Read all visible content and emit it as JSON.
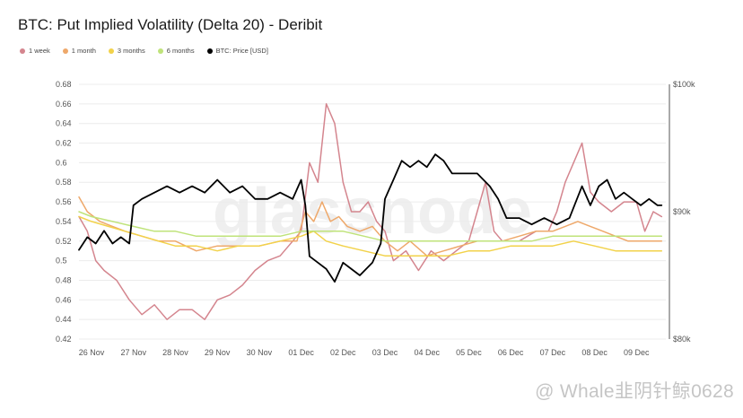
{
  "title": "BTC: Put Implied Volatility (Delta 20) - Deribit",
  "watermark_text": "@ Whale韭阴针鲸0628",
  "brand_watermark": "glassnode",
  "legend": [
    {
      "label": "1 week",
      "color": "#d4858e"
    },
    {
      "label": "1 month",
      "color": "#eea86a"
    },
    {
      "label": "3 months",
      "color": "#f2d24a"
    },
    {
      "label": "6 months",
      "color": "#bfe37a"
    },
    {
      "label": "BTC: Price [USD]",
      "color": "#000000"
    }
  ],
  "chart_data": {
    "type": "line",
    "title": "BTC: Put Implied Volatility (Delta 20) - Deribit",
    "x": [
      "26 Nov",
      "27 Nov",
      "28 Nov",
      "29 Nov",
      "30 Nov",
      "01 Dec",
      "02 Dec",
      "03 Dec",
      "04 Dec",
      "05 Dec",
      "06 Dec",
      "07 Dec",
      "08 Dec",
      "09 Dec"
    ],
    "x_tick_labels": [
      "26 Nov",
      "27 Nov",
      "28 Nov",
      "29 Nov",
      "30 Nov",
      "01 Dec",
      "02 Dec",
      "03 Dec",
      "04 Dec",
      "05 Dec",
      "06 Dec",
      "07 Dec",
      "08 Dec",
      "09 Dec"
    ],
    "y_left": {
      "ylim": [
        0.42,
        0.68
      ],
      "ticks": [
        "0.42",
        "0.44",
        "0.46",
        "0.48",
        "0.5",
        "0.52",
        "0.54",
        "0.56",
        "0.58",
        "0.6",
        "0.62",
        "0.64",
        "0.66",
        "0.68"
      ]
    },
    "y_right": {
      "ylim": [
        80000,
        100000
      ],
      "ticks": [
        {
          "value": 100000,
          "label": "$100k"
        },
        {
          "value": 90000,
          "label": "$90k"
        },
        {
          "value": 80000,
          "label": "$80k"
        }
      ]
    },
    "x_range": [
      -0.3,
      13.7
    ],
    "grid": "horizontal",
    "legend_position": "top-left",
    "series": [
      {
        "name": "1 week",
        "axis": "left",
        "color": "#d4858e",
        "points": [
          [
            -0.3,
            0.545
          ],
          [
            -0.1,
            0.53
          ],
          [
            0.1,
            0.5
          ],
          [
            0.3,
            0.49
          ],
          [
            0.6,
            0.48
          ],
          [
            0.9,
            0.46
          ],
          [
            1.2,
            0.445
          ],
          [
            1.5,
            0.455
          ],
          [
            1.8,
            0.44
          ],
          [
            2.1,
            0.45
          ],
          [
            2.4,
            0.45
          ],
          [
            2.7,
            0.44
          ],
          [
            3.0,
            0.46
          ],
          [
            3.3,
            0.465
          ],
          [
            3.6,
            0.475
          ],
          [
            3.9,
            0.49
          ],
          [
            4.2,
            0.5
          ],
          [
            4.5,
            0.505
          ],
          [
            4.8,
            0.52
          ],
          [
            5.0,
            0.53
          ],
          [
            5.2,
            0.6
          ],
          [
            5.4,
            0.58
          ],
          [
            5.6,
            0.66
          ],
          [
            5.8,
            0.64
          ],
          [
            6.0,
            0.58
          ],
          [
            6.2,
            0.55
          ],
          [
            6.4,
            0.55
          ],
          [
            6.6,
            0.56
          ],
          [
            6.8,
            0.54
          ],
          [
            7.0,
            0.53
          ],
          [
            7.2,
            0.5
          ],
          [
            7.5,
            0.51
          ],
          [
            7.8,
            0.49
          ],
          [
            8.1,
            0.51
          ],
          [
            8.4,
            0.5
          ],
          [
            8.7,
            0.51
          ],
          [
            9.0,
            0.52
          ],
          [
            9.2,
            0.55
          ],
          [
            9.4,
            0.58
          ],
          [
            9.6,
            0.53
          ],
          [
            9.8,
            0.52
          ],
          [
            10.2,
            0.52
          ],
          [
            10.6,
            0.53
          ],
          [
            10.9,
            0.53
          ],
          [
            11.1,
            0.55
          ],
          [
            11.3,
            0.58
          ],
          [
            11.5,
            0.6
          ],
          [
            11.7,
            0.62
          ],
          [
            11.9,
            0.57
          ],
          [
            12.1,
            0.56
          ],
          [
            12.4,
            0.55
          ],
          [
            12.7,
            0.56
          ],
          [
            13.0,
            0.56
          ],
          [
            13.2,
            0.53
          ],
          [
            13.4,
            0.55
          ],
          [
            13.6,
            0.545
          ]
        ]
      },
      {
        "name": "1 month",
        "axis": "left",
        "color": "#eea86a",
        "points": [
          [
            -0.3,
            0.565
          ],
          [
            -0.1,
            0.55
          ],
          [
            0.2,
            0.54
          ],
          [
            0.5,
            0.535
          ],
          [
            0.8,
            0.53
          ],
          [
            1.2,
            0.525
          ],
          [
            1.6,
            0.52
          ],
          [
            2.0,
            0.52
          ],
          [
            2.5,
            0.51
          ],
          [
            3.0,
            0.515
          ],
          [
            3.5,
            0.515
          ],
          [
            4.0,
            0.515
          ],
          [
            4.5,
            0.52
          ],
          [
            4.9,
            0.52
          ],
          [
            5.1,
            0.55
          ],
          [
            5.3,
            0.54
          ],
          [
            5.5,
            0.56
          ],
          [
            5.7,
            0.54
          ],
          [
            5.9,
            0.545
          ],
          [
            6.1,
            0.535
          ],
          [
            6.4,
            0.53
          ],
          [
            6.7,
            0.535
          ],
          [
            7.0,
            0.52
          ],
          [
            7.3,
            0.51
          ],
          [
            7.6,
            0.52
          ],
          [
            8.0,
            0.505
          ],
          [
            8.4,
            0.51
          ],
          [
            8.8,
            0.515
          ],
          [
            9.2,
            0.52
          ],
          [
            9.5,
            0.52
          ],
          [
            9.8,
            0.52
          ],
          [
            10.2,
            0.525
          ],
          [
            10.6,
            0.53
          ],
          [
            11.0,
            0.53
          ],
          [
            11.3,
            0.535
          ],
          [
            11.6,
            0.54
          ],
          [
            11.9,
            0.535
          ],
          [
            12.2,
            0.53
          ],
          [
            12.5,
            0.525
          ],
          [
            12.8,
            0.52
          ],
          [
            13.1,
            0.52
          ],
          [
            13.4,
            0.52
          ],
          [
            13.6,
            0.52
          ]
        ]
      },
      {
        "name": "3 months",
        "axis": "left",
        "color": "#f2d24a",
        "points": [
          [
            -0.3,
            0.545
          ],
          [
            0.0,
            0.54
          ],
          [
            0.4,
            0.535
          ],
          [
            0.8,
            0.53
          ],
          [
            1.2,
            0.525
          ],
          [
            1.6,
            0.52
          ],
          [
            2.0,
            0.515
          ],
          [
            2.5,
            0.515
          ],
          [
            3.0,
            0.51
          ],
          [
            3.5,
            0.515
          ],
          [
            4.0,
            0.515
          ],
          [
            4.5,
            0.52
          ],
          [
            5.0,
            0.525
          ],
          [
            5.3,
            0.53
          ],
          [
            5.6,
            0.52
          ],
          [
            6.0,
            0.515
          ],
          [
            6.5,
            0.51
          ],
          [
            7.0,
            0.505
          ],
          [
            7.5,
            0.505
          ],
          [
            8.0,
            0.505
          ],
          [
            8.5,
            0.505
          ],
          [
            9.0,
            0.51
          ],
          [
            9.5,
            0.51
          ],
          [
            10.0,
            0.515
          ],
          [
            10.5,
            0.515
          ],
          [
            11.0,
            0.515
          ],
          [
            11.5,
            0.52
          ],
          [
            12.0,
            0.515
          ],
          [
            12.5,
            0.51
          ],
          [
            13.0,
            0.51
          ],
          [
            13.6,
            0.51
          ]
        ]
      },
      {
        "name": "6 months",
        "axis": "left",
        "color": "#bfe37a",
        "points": [
          [
            -0.3,
            0.55
          ],
          [
            0.0,
            0.545
          ],
          [
            0.5,
            0.54
          ],
          [
            1.0,
            0.535
          ],
          [
            1.5,
            0.53
          ],
          [
            2.0,
            0.53
          ],
          [
            2.5,
            0.525
          ],
          [
            3.0,
            0.525
          ],
          [
            3.5,
            0.525
          ],
          [
            4.0,
            0.525
          ],
          [
            4.5,
            0.525
          ],
          [
            5.0,
            0.53
          ],
          [
            5.5,
            0.53
          ],
          [
            6.0,
            0.53
          ],
          [
            6.5,
            0.525
          ],
          [
            7.0,
            0.52
          ],
          [
            7.5,
            0.52
          ],
          [
            8.0,
            0.52
          ],
          [
            8.5,
            0.52
          ],
          [
            9.0,
            0.52
          ],
          [
            9.5,
            0.52
          ],
          [
            10.0,
            0.52
          ],
          [
            10.5,
            0.52
          ],
          [
            11.0,
            0.525
          ],
          [
            11.5,
            0.525
          ],
          [
            12.0,
            0.525
          ],
          [
            12.5,
            0.525
          ],
          [
            13.0,
            0.525
          ],
          [
            13.6,
            0.525
          ]
        ]
      },
      {
        "name": "BTC: Price [USD]",
        "axis": "right",
        "color": "#000000",
        "points": [
          [
            -0.3,
            87000
          ],
          [
            -0.1,
            88000
          ],
          [
            0.1,
            87500
          ],
          [
            0.3,
            88500
          ],
          [
            0.5,
            87500
          ],
          [
            0.7,
            88000
          ],
          [
            0.9,
            87500
          ],
          [
            1.0,
            90500
          ],
          [
            1.2,
            91000
          ],
          [
            1.5,
            91500
          ],
          [
            1.8,
            92000
          ],
          [
            2.1,
            91500
          ],
          [
            2.4,
            92000
          ],
          [
            2.7,
            91500
          ],
          [
            3.0,
            92500
          ],
          [
            3.3,
            91500
          ],
          [
            3.6,
            92000
          ],
          [
            3.9,
            91000
          ],
          [
            4.2,
            91000
          ],
          [
            4.5,
            91500
          ],
          [
            4.8,
            91000
          ],
          [
            5.0,
            92500
          ],
          [
            5.1,
            90500
          ],
          [
            5.2,
            86500
          ],
          [
            5.4,
            86000
          ],
          [
            5.6,
            85500
          ],
          [
            5.8,
            84500
          ],
          [
            6.0,
            86000
          ],
          [
            6.2,
            85500
          ],
          [
            6.4,
            85000
          ],
          [
            6.7,
            86000
          ],
          [
            6.9,
            87500
          ],
          [
            7.0,
            91000
          ],
          [
            7.2,
            92500
          ],
          [
            7.4,
            94000
          ],
          [
            7.6,
            93500
          ],
          [
            7.8,
            94000
          ],
          [
            8.0,
            93500
          ],
          [
            8.2,
            94500
          ],
          [
            8.4,
            94000
          ],
          [
            8.6,
            93000
          ],
          [
            8.9,
            93000
          ],
          [
            9.2,
            93000
          ],
          [
            9.5,
            92000
          ],
          [
            9.7,
            91000
          ],
          [
            9.9,
            89500
          ],
          [
            10.2,
            89500
          ],
          [
            10.5,
            89000
          ],
          [
            10.8,
            89500
          ],
          [
            11.1,
            89000
          ],
          [
            11.4,
            89500
          ],
          [
            11.7,
            92000
          ],
          [
            11.9,
            90500
          ],
          [
            12.1,
            92000
          ],
          [
            12.3,
            92500
          ],
          [
            12.5,
            91000
          ],
          [
            12.7,
            91500
          ],
          [
            12.9,
            91000
          ],
          [
            13.1,
            90500
          ],
          [
            13.3,
            91000
          ],
          [
            13.5,
            90500
          ],
          [
            13.6,
            90500
          ]
        ]
      }
    ]
  }
}
